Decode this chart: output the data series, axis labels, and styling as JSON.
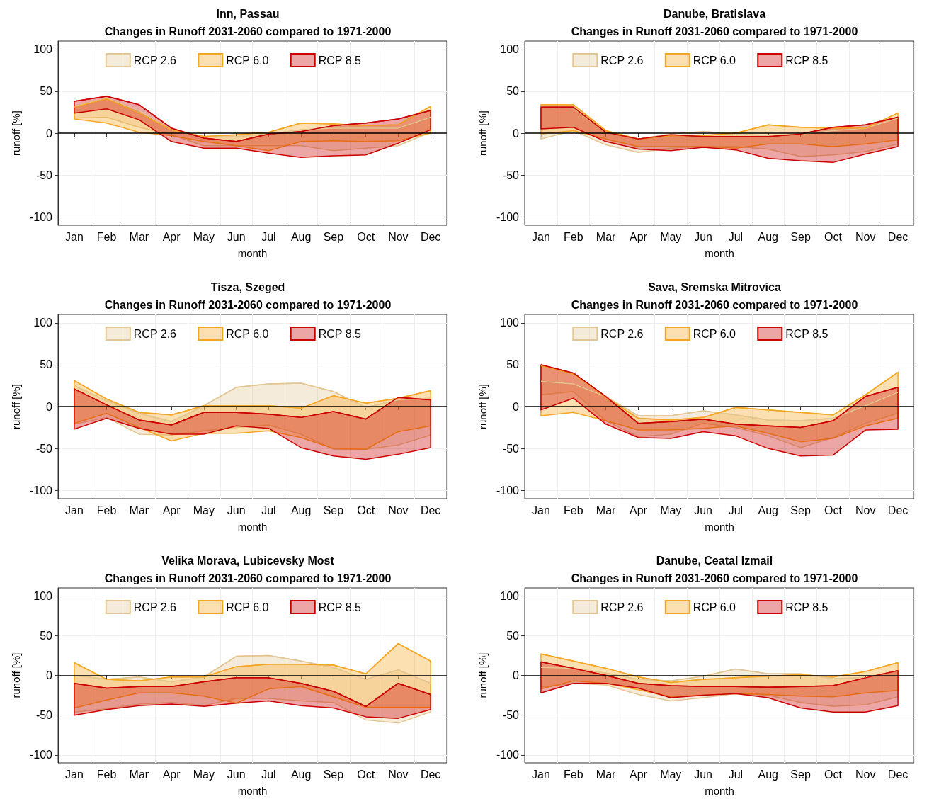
{
  "chart_data": [
    {
      "type": "line",
      "marker": "none",
      "title": "Inn, Passau",
      "subtitle": "Changes in Runoff 2031-2060 compared to 1971-2000",
      "xlabel": "month",
      "ylabel": "runoff [%]",
      "categories": [
        "Jan",
        "Feb",
        "Mar",
        "Apr",
        "May",
        "Jun",
        "Jul",
        "Aug",
        "Sep",
        "Oct",
        "Nov",
        "Dec"
      ],
      "ylim": [
        -110,
        110
      ],
      "yticks": [
        -100,
        -50,
        0,
        50,
        100
      ],
      "grid": true,
      "legend": "top",
      "ref_lines": [
        {
          "axis": "y",
          "value": 0,
          "label": null,
          "color": "#000000"
        }
      ],
      "series": [
        {
          "name": "RCP 2.6",
          "color": "#e2c794",
          "values": [
            32,
            42,
            27,
            4,
            -4,
            -4,
            -1,
            4,
            6,
            6,
            6,
            19
          ],
          "upper": [
            32,
            42,
            27,
            4,
            -4,
            -4,
            -1,
            4,
            6,
            6,
            6,
            19
          ],
          "lower": [
            18,
            19,
            7,
            -2,
            -15,
            -15,
            -15,
            -15,
            -21,
            -18,
            -15,
            1
          ]
        },
        {
          "name": "RCP 6.0",
          "color": "#f5a623",
          "values": [
            31,
            41,
            24,
            4,
            -4,
            -2,
            1,
            12,
            11,
            9,
            10,
            32
          ],
          "upper": [
            31,
            41,
            24,
            4,
            -4,
            -2,
            1,
            12,
            11,
            9,
            10,
            32
          ],
          "lower": [
            17,
            12,
            1,
            -3,
            -10,
            -15,
            -21,
            -10,
            -9,
            -10,
            -9,
            0
          ]
        },
        {
          "name": "RCP 8.5",
          "color": "#cc0000",
          "values": [
            38,
            44,
            34,
            6,
            -6,
            -10,
            -1,
            2,
            9,
            12,
            17,
            27
          ],
          "upper": [
            38,
            44,
            34,
            6,
            -6,
            -10,
            -1,
            2,
            9,
            12,
            17,
            27
          ],
          "lower": [
            24,
            29,
            16,
            -10,
            -18,
            -18,
            -24,
            -29,
            -27,
            -26,
            -12,
            4
          ]
        }
      ]
    },
    {
      "type": "line",
      "marker": "none",
      "title": "Danube, Bratislava",
      "subtitle": "Changes in Runoff 2031-2060 compared to 1971-2000",
      "xlabel": "month",
      "ylabel": "runoff [%]",
      "categories": [
        "Jan",
        "Feb",
        "Mar",
        "Apr",
        "May",
        "Jun",
        "Jul",
        "Aug",
        "Sep",
        "Oct",
        "Nov",
        "Dec"
      ],
      "ylim": [
        -110,
        110
      ],
      "yticks": [
        -100,
        -50,
        0,
        50,
        100
      ],
      "grid": true,
      "legend": "top",
      "ref_lines": [
        {
          "axis": "y",
          "value": 0,
          "label": null,
          "color": "#000000"
        }
      ],
      "series": [
        {
          "name": "RCP 2.6",
          "color": "#e2c794",
          "values": [
            31,
            30,
            1,
            -7,
            -1,
            2,
            -1,
            -3,
            -1,
            3,
            6,
            18
          ],
          "upper": [
            31,
            30,
            1,
            -7,
            -1,
            2,
            -1,
            -3,
            -1,
            3,
            6,
            18
          ],
          "lower": [
            -7,
            3,
            -14,
            -23,
            -18,
            -16,
            -16,
            -19,
            -28,
            -26,
            -22,
            -13
          ]
        },
        {
          "name": "RCP 6.0",
          "color": "#f5a623",
          "values": [
            34,
            34,
            3,
            -7,
            -3,
            -3,
            0,
            10,
            7,
            6,
            6,
            24
          ],
          "upper": [
            34,
            34,
            3,
            -7,
            -3,
            -3,
            0,
            10,
            7,
            6,
            6,
            24
          ],
          "lower": [
            -1,
            3,
            -7,
            -16,
            -16,
            -16,
            -18,
            -13,
            -13,
            -16,
            -13,
            -8
          ]
        },
        {
          "name": "RCP 8.5",
          "color": "#cc0000",
          "values": [
            31,
            31,
            1,
            -7,
            -2,
            -4,
            -4,
            -4,
            -1,
            7,
            10,
            19
          ],
          "upper": [
            31,
            31,
            1,
            -7,
            -2,
            -4,
            -4,
            -4,
            -1,
            7,
            10,
            19
          ],
          "lower": [
            5,
            7,
            -10,
            -19,
            -21,
            -17,
            -20,
            -30,
            -33,
            -35,
            -25,
            -16
          ]
        }
      ]
    },
    {
      "type": "line",
      "marker": "none",
      "title": "Tisza, Szeged",
      "subtitle": "Changes in Runoff 2031-2060 compared to 1971-2000",
      "xlabel": "month",
      "ylabel": "runoff [%]",
      "categories": [
        "Jan",
        "Feb",
        "Mar",
        "Apr",
        "May",
        "Jun",
        "Jul",
        "Aug",
        "Sep",
        "Oct",
        "Nov",
        "Dec"
      ],
      "ylim": [
        -110,
        110
      ],
      "yticks": [
        -100,
        -50,
        0,
        50,
        100
      ],
      "grid": true,
      "legend": "top",
      "ref_lines": [
        {
          "axis": "y",
          "value": 0,
          "label": null,
          "color": "#000000"
        }
      ],
      "series": [
        {
          "name": "RCP 2.6",
          "color": "#e2c794",
          "values": [
            25,
            7,
            -8,
            -18,
            1,
            23,
            27,
            28,
            18,
            -1,
            8,
            10
          ],
          "upper": [
            25,
            7,
            -8,
            -18,
            1,
            23,
            27,
            28,
            18,
            -1,
            8,
            10
          ],
          "lower": [
            -21,
            -13,
            -33,
            -34,
            -29,
            -25,
            -22,
            -33,
            -51,
            -51,
            -46,
            -34
          ]
        },
        {
          "name": "RCP 6.0",
          "color": "#f5a623",
          "values": [
            31,
            9,
            -7,
            -10,
            1,
            1,
            1,
            -2,
            13,
            4,
            10,
            19
          ],
          "upper": [
            31,
            9,
            -7,
            -10,
            1,
            1,
            1,
            -2,
            13,
            4,
            10,
            19
          ],
          "lower": [
            -20,
            -8,
            -25,
            -41,
            -32,
            -32,
            -29,
            -37,
            -50,
            -51,
            -30,
            -23
          ]
        },
        {
          "name": "RCP 8.5",
          "color": "#cc0000",
          "values": [
            21,
            2,
            -16,
            -22,
            -7,
            -7,
            -9,
            -13,
            -6,
            -15,
            11,
            8
          ],
          "upper": [
            21,
            2,
            -16,
            -22,
            -7,
            -7,
            -9,
            -13,
            -6,
            -15,
            11,
            8
          ],
          "lower": [
            -27,
            -14,
            -26,
            -33,
            -33,
            -23,
            -26,
            -49,
            -59,
            -63,
            -57,
            -49
          ]
        }
      ]
    },
    {
      "type": "line",
      "marker": "none",
      "title": "Sava, Sremska Mitrovica",
      "subtitle": "Changes in Runoff 2031-2060 compared to 1971-2000",
      "xlabel": "month",
      "ylabel": "runoff [%]",
      "categories": [
        "Jan",
        "Feb",
        "Mar",
        "Apr",
        "May",
        "Jun",
        "Jul",
        "Aug",
        "Sep",
        "Oct",
        "Nov",
        "Dec"
      ],
      "ylim": [
        -110,
        110
      ],
      "yticks": [
        -100,
        -50,
        0,
        50,
        100
      ],
      "grid": true,
      "legend": "top",
      "ref_lines": [
        {
          "axis": "y",
          "value": 0,
          "label": null,
          "color": "#000000"
        }
      ],
      "series": [
        {
          "name": "RCP 2.6",
          "color": "#e2c794",
          "values": [
            30,
            27,
            12,
            -11,
            -11,
            -5,
            -10,
            -16,
            -17,
            -14,
            1,
            17
          ],
          "upper": [
            30,
            27,
            12,
            -11,
            -11,
            -5,
            -10,
            -16,
            -17,
            -14,
            1,
            17
          ],
          "lower": [
            14,
            18,
            -17,
            -36,
            -33,
            -20,
            -25,
            -35,
            -49,
            -37,
            -20,
            -8
          ]
        },
        {
          "name": "RCP 6.0",
          "color": "#f5a623",
          "values": [
            49,
            39,
            11,
            -14,
            -16,
            -13,
            -1,
            -4,
            -7,
            -10,
            14,
            41
          ],
          "upper": [
            49,
            39,
            11,
            -14,
            -16,
            -13,
            -1,
            -4,
            -7,
            -10,
            14,
            41
          ],
          "lower": [
            -11,
            -7,
            -17,
            -28,
            -28,
            -26,
            -23,
            -32,
            -42,
            -38,
            -23,
            -14
          ]
        },
        {
          "name": "RCP 8.5",
          "color": "#cc0000",
          "values": [
            50,
            40,
            12,
            -20,
            -18,
            -15,
            -21,
            -23,
            -25,
            -17,
            12,
            23
          ],
          "upper": [
            50,
            40,
            12,
            -20,
            -18,
            -15,
            -21,
            -23,
            -25,
            -17,
            12,
            23
          ],
          "lower": [
            -4,
            10,
            -21,
            -37,
            -38,
            -30,
            -35,
            -50,
            -59,
            -58,
            -28,
            -27
          ]
        }
      ]
    },
    {
      "type": "line",
      "marker": "none",
      "title": "Velika Morava, Lubicevsky Most",
      "subtitle": "Changes in Runoff 2031-2060 compared to 1971-2000",
      "xlabel": "month",
      "ylabel": "runoff [%]",
      "categories": [
        "Jan",
        "Feb",
        "Mar",
        "Apr",
        "May",
        "Jun",
        "Jul",
        "Aug",
        "Sep",
        "Oct",
        "Nov",
        "Dec"
      ],
      "ylim": [
        -110,
        110
      ],
      "yticks": [
        -100,
        -50,
        0,
        50,
        100
      ],
      "grid": true,
      "legend": "top",
      "ref_lines": [
        {
          "axis": "y",
          "value": 0,
          "label": null,
          "color": "#000000"
        }
      ],
      "series": [
        {
          "name": "RCP 2.6",
          "color": "#e2c794",
          "values": [
            0,
            -5,
            -2,
            -8,
            -2,
            24,
            25,
            18,
            10,
            -5,
            7,
            -10
          ],
          "upper": [
            0,
            -5,
            -2,
            -8,
            -2,
            24,
            25,
            18,
            10,
            -5,
            7,
            -10
          ],
          "lower": [
            -46,
            -42,
            -36,
            -34,
            -38,
            -29,
            -29,
            -32,
            -34,
            -56,
            -60,
            -46
          ]
        },
        {
          "name": "RCP 6.0",
          "color": "#f5a623",
          "values": [
            16,
            -5,
            -7,
            -2,
            -2,
            11,
            14,
            14,
            13,
            2,
            40,
            18
          ],
          "upper": [
            16,
            -5,
            -7,
            -2,
            -2,
            11,
            14,
            14,
            13,
            2,
            40,
            18
          ],
          "lower": [
            -41,
            -31,
            -22,
            -22,
            -26,
            -35,
            -17,
            -14,
            -27,
            -40,
            -40,
            -40
          ]
        },
        {
          "name": "RCP 8.5",
          "color": "#cc0000",
          "values": [
            -10,
            -16,
            -14,
            -14,
            -8,
            -3,
            -3,
            -10,
            -20,
            -39,
            -10,
            -24
          ],
          "upper": [
            -10,
            -16,
            -14,
            -14,
            -8,
            -3,
            -3,
            -10,
            -20,
            -39,
            -10,
            -24
          ],
          "lower": [
            -50,
            -43,
            -38,
            -36,
            -39,
            -35,
            -32,
            -38,
            -41,
            -52,
            -54,
            -43
          ]
        }
      ]
    },
    {
      "type": "line",
      "marker": "none",
      "title": "Danube, Ceatal Izmail",
      "subtitle": "Changes in Runoff 2031-2060 compared to 1971-2000",
      "xlabel": "month",
      "ylabel": "runoff [%]",
      "categories": [
        "Jan",
        "Feb",
        "Mar",
        "Apr",
        "May",
        "Jun",
        "Jul",
        "Aug",
        "Sep",
        "Oct",
        "Nov",
        "Dec"
      ],
      "ylim": [
        -110,
        110
      ],
      "yticks": [
        -100,
        -50,
        0,
        50,
        100
      ],
      "grid": true,
      "legend": "top",
      "ref_lines": [
        {
          "axis": "y",
          "value": 0,
          "label": null,
          "color": "#000000"
        }
      ],
      "series": [
        {
          "name": "RCP 2.6",
          "color": "#e2c794",
          "values": [
            10,
            9,
            3,
            -5,
            -7,
            -1,
            8,
            2,
            2,
            -4,
            -3,
            6
          ],
          "upper": [
            10,
            9,
            3,
            -5,
            -7,
            -1,
            8,
            2,
            2,
            -4,
            -3,
            6
          ],
          "lower": [
            -15,
            -10,
            -12,
            -24,
            -32,
            -28,
            -23,
            -25,
            -34,
            -39,
            -37,
            -27
          ]
        },
        {
          "name": "RCP 6.0",
          "color": "#f5a623",
          "values": [
            27,
            18,
            9,
            -2,
            -9,
            -5,
            -3,
            -1,
            1,
            -2,
            5,
            16
          ],
          "upper": [
            27,
            18,
            9,
            -2,
            -9,
            -5,
            -3,
            -1,
            1,
            -2,
            5,
            16
          ],
          "lower": [
            -17,
            -7,
            -10,
            -18,
            -27,
            -25,
            -23,
            -24,
            -26,
            -27,
            -22,
            -19
          ]
        },
        {
          "name": "RCP 8.5",
          "color": "#cc0000",
          "values": [
            17,
            9,
            0,
            -10,
            -13,
            -14,
            -14,
            -15,
            -14,
            -13,
            -3,
            6
          ],
          "upper": [
            17,
            9,
            0,
            -10,
            -13,
            -14,
            -14,
            -15,
            -14,
            -13,
            -3,
            6
          ],
          "lower": [
            -22,
            -10,
            -10,
            -16,
            -28,
            -25,
            -23,
            -28,
            -41,
            -46,
            -46,
            -38
          ]
        }
      ]
    }
  ]
}
